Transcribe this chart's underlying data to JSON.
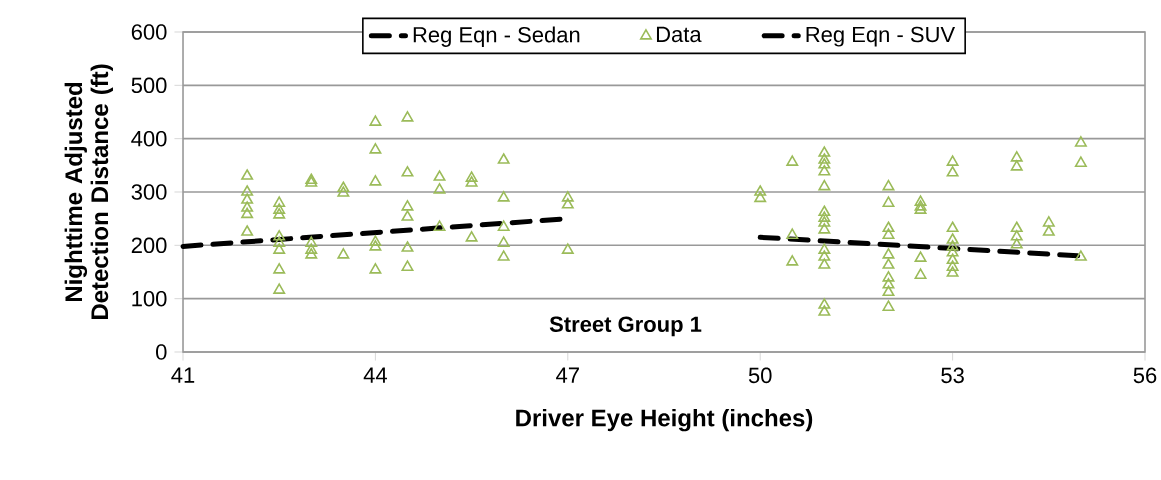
{
  "chart_data": {
    "type": "scatter",
    "xlabel": "Driver Eye Height (inches)",
    "ylabel": "Nighttime Adjusted Detection Distance (ft)",
    "annotations": [
      "Street Group 1"
    ],
    "xlim": [
      41,
      56
    ],
    "xticks": [
      41,
      44,
      47,
      50,
      53,
      56
    ],
    "ylim": [
      0,
      600
    ],
    "yticks": [
      0,
      100,
      200,
      300,
      400,
      500,
      600
    ],
    "grid": "y",
    "legend": "top",
    "series": [
      {
        "name": "Reg Eqn - Sedan",
        "type": "line",
        "color": "#000000",
        "marker": "none",
        "line_style": "dashed",
        "x": [
          41,
          47
        ],
        "values": [
          198,
          250
        ]
      },
      {
        "name": "Data",
        "color": "#9bbb59",
        "marker": "triangle",
        "x": [
          42,
          42,
          42,
          42,
          42,
          42,
          42.5,
          42.5,
          42.5,
          42.5,
          42.5,
          42.5,
          42.5,
          42.5,
          43,
          43,
          43,
          43,
          43,
          43.5,
          43.5,
          43.5,
          44,
          44,
          44,
          44,
          44,
          44,
          44.5,
          44.5,
          44.5,
          44.5,
          44.5,
          44.5,
          45,
          45,
          45,
          45.5,
          45.5,
          45.5,
          46,
          46,
          46,
          46,
          46,
          47,
          47,
          47,
          50,
          50,
          50.5,
          50.5,
          50.5,
          51,
          51,
          51,
          51,
          51,
          51,
          51,
          51,
          51,
          51,
          51,
          51,
          51,
          51,
          52,
          52,
          52,
          52,
          52,
          52,
          52,
          52,
          52,
          52,
          52.5,
          52.5,
          52.5,
          52.5,
          52.5,
          53,
          53,
          53,
          53,
          53,
          53,
          53,
          53,
          53,
          54,
          54,
          54,
          54,
          54,
          54.5,
          54.5,
          55,
          55,
          55
        ],
        "values": [
          330,
          300,
          285,
          270,
          258,
          225,
          279,
          266,
          257,
          216,
          204,
          191,
          154,
          116,
          322,
          317,
          204,
          191,
          182,
          307,
          298,
          182,
          431,
          379,
          319,
          206,
          197,
          154,
          439,
          336,
          272,
          253,
          195,
          159,
          328,
          304,
          234,
          326,
          317,
          214,
          360,
          289,
          234,
          204,
          178,
          289,
          276,
          191,
          300,
          288,
          356,
          219,
          169,
          373,
          360,
          351,
          338,
          310,
          262,
          251,
          242,
          229,
          191,
          178,
          163,
          88,
          75,
          310,
          279,
          232,
          219,
          182,
          163,
          139,
          126,
          112,
          84,
          281,
          272,
          266,
          176,
          144,
          356,
          336,
          232,
          210,
          197,
          186,
          172,
          159,
          148,
          364,
          347,
          232,
          216,
          201,
          242,
          225,
          392,
          354,
          178
        ]
      },
      {
        "name": "Reg Eqn - SUV",
        "type": "line",
        "color": "#000000",
        "marker": "none",
        "line_style": "dashed",
        "x": [
          50,
          55
        ],
        "values": [
          215,
          180
        ]
      }
    ]
  }
}
